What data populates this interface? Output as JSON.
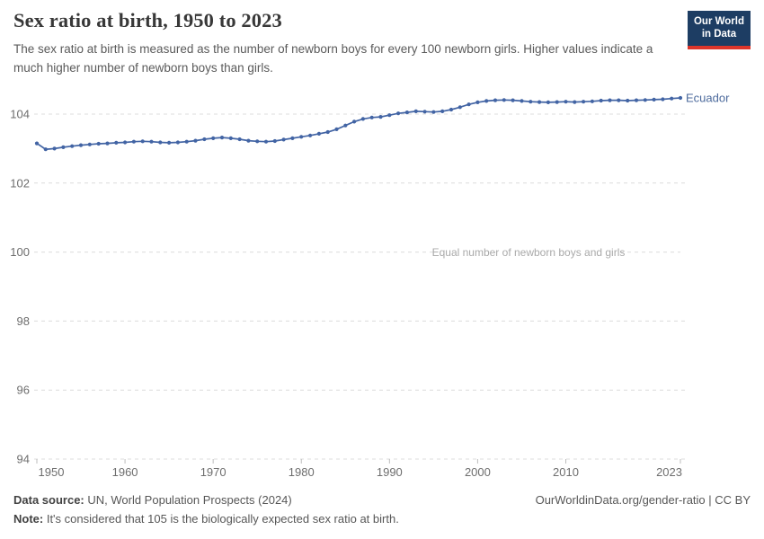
{
  "header": {
    "title": "Sex ratio at birth, 1950 to 2023",
    "subtitle": "The sex ratio at birth is measured as the number of newborn boys for every 100 newborn girls. Higher values indicate a much higher number of newborn boys than girls.",
    "logo": {
      "line1": "Our World",
      "line2": "in Data"
    },
    "logo_colors": {
      "background": "#1d3d63",
      "accent": "#dc352a"
    }
  },
  "chart_data": {
    "type": "line",
    "title": "Sex ratio at birth, 1950 to 2023",
    "xlabel": "",
    "ylabel": "",
    "xlim": [
      1950,
      2023
    ],
    "ylim": [
      94,
      104.7
    ],
    "x_ticks": [
      1950,
      1960,
      1970,
      1980,
      1990,
      2000,
      2010,
      2023
    ],
    "y_ticks": [
      104,
      102,
      100,
      98,
      96,
      94
    ],
    "grid": "horizontal-dashed",
    "legend_position": "end-of-line",
    "annotation": {
      "value": 100,
      "text": "Equal number of newborn boys and girls"
    },
    "series": [
      {
        "name": "Ecuador",
        "color": "#4264a4",
        "x": [
          1950,
          1951,
          1952,
          1953,
          1954,
          1955,
          1956,
          1957,
          1958,
          1959,
          1960,
          1961,
          1962,
          1963,
          1964,
          1965,
          1966,
          1967,
          1968,
          1969,
          1970,
          1971,
          1972,
          1973,
          1974,
          1975,
          1976,
          1977,
          1978,
          1979,
          1980,
          1981,
          1982,
          1983,
          1984,
          1985,
          1986,
          1987,
          1988,
          1989,
          1990,
          1991,
          1992,
          1993,
          1994,
          1995,
          1996,
          1997,
          1998,
          1999,
          2000,
          2001,
          2002,
          2003,
          2004,
          2005,
          2006,
          2007,
          2008,
          2009,
          2010,
          2011,
          2012,
          2013,
          2014,
          2015,
          2016,
          2017,
          2018,
          2019,
          2020,
          2021,
          2022,
          2023
        ],
        "values": [
          103.15,
          102.98,
          103.0,
          103.04,
          103.07,
          103.1,
          103.12,
          103.14,
          103.15,
          103.17,
          103.18,
          103.2,
          103.21,
          103.2,
          103.18,
          103.17,
          103.18,
          103.2,
          103.23,
          103.27,
          103.3,
          103.32,
          103.3,
          103.27,
          103.23,
          103.21,
          103.2,
          103.22,
          103.26,
          103.3,
          103.34,
          103.38,
          103.43,
          103.48,
          103.56,
          103.67,
          103.78,
          103.86,
          103.9,
          103.92,
          103.97,
          104.02,
          104.05,
          104.08,
          104.07,
          104.06,
          104.08,
          104.13,
          104.2,
          104.28,
          104.34,
          104.38,
          104.4,
          104.41,
          104.4,
          104.38,
          104.36,
          104.35,
          104.34,
          104.35,
          104.36,
          104.35,
          104.36,
          104.37,
          104.39,
          104.4,
          104.4,
          104.39,
          104.4,
          104.41,
          104.42,
          104.43,
          104.45,
          104.47
        ]
      }
    ]
  },
  "footer": {
    "datasource_label": "Data source:",
    "datasource": " UN, World Population Prospects (2024)",
    "note_label": "Note:",
    "note": " It's considered that 105 is the biologically expected sex ratio at birth.",
    "credit": "OurWorldinData.org/gender-ratio | CC BY"
  }
}
